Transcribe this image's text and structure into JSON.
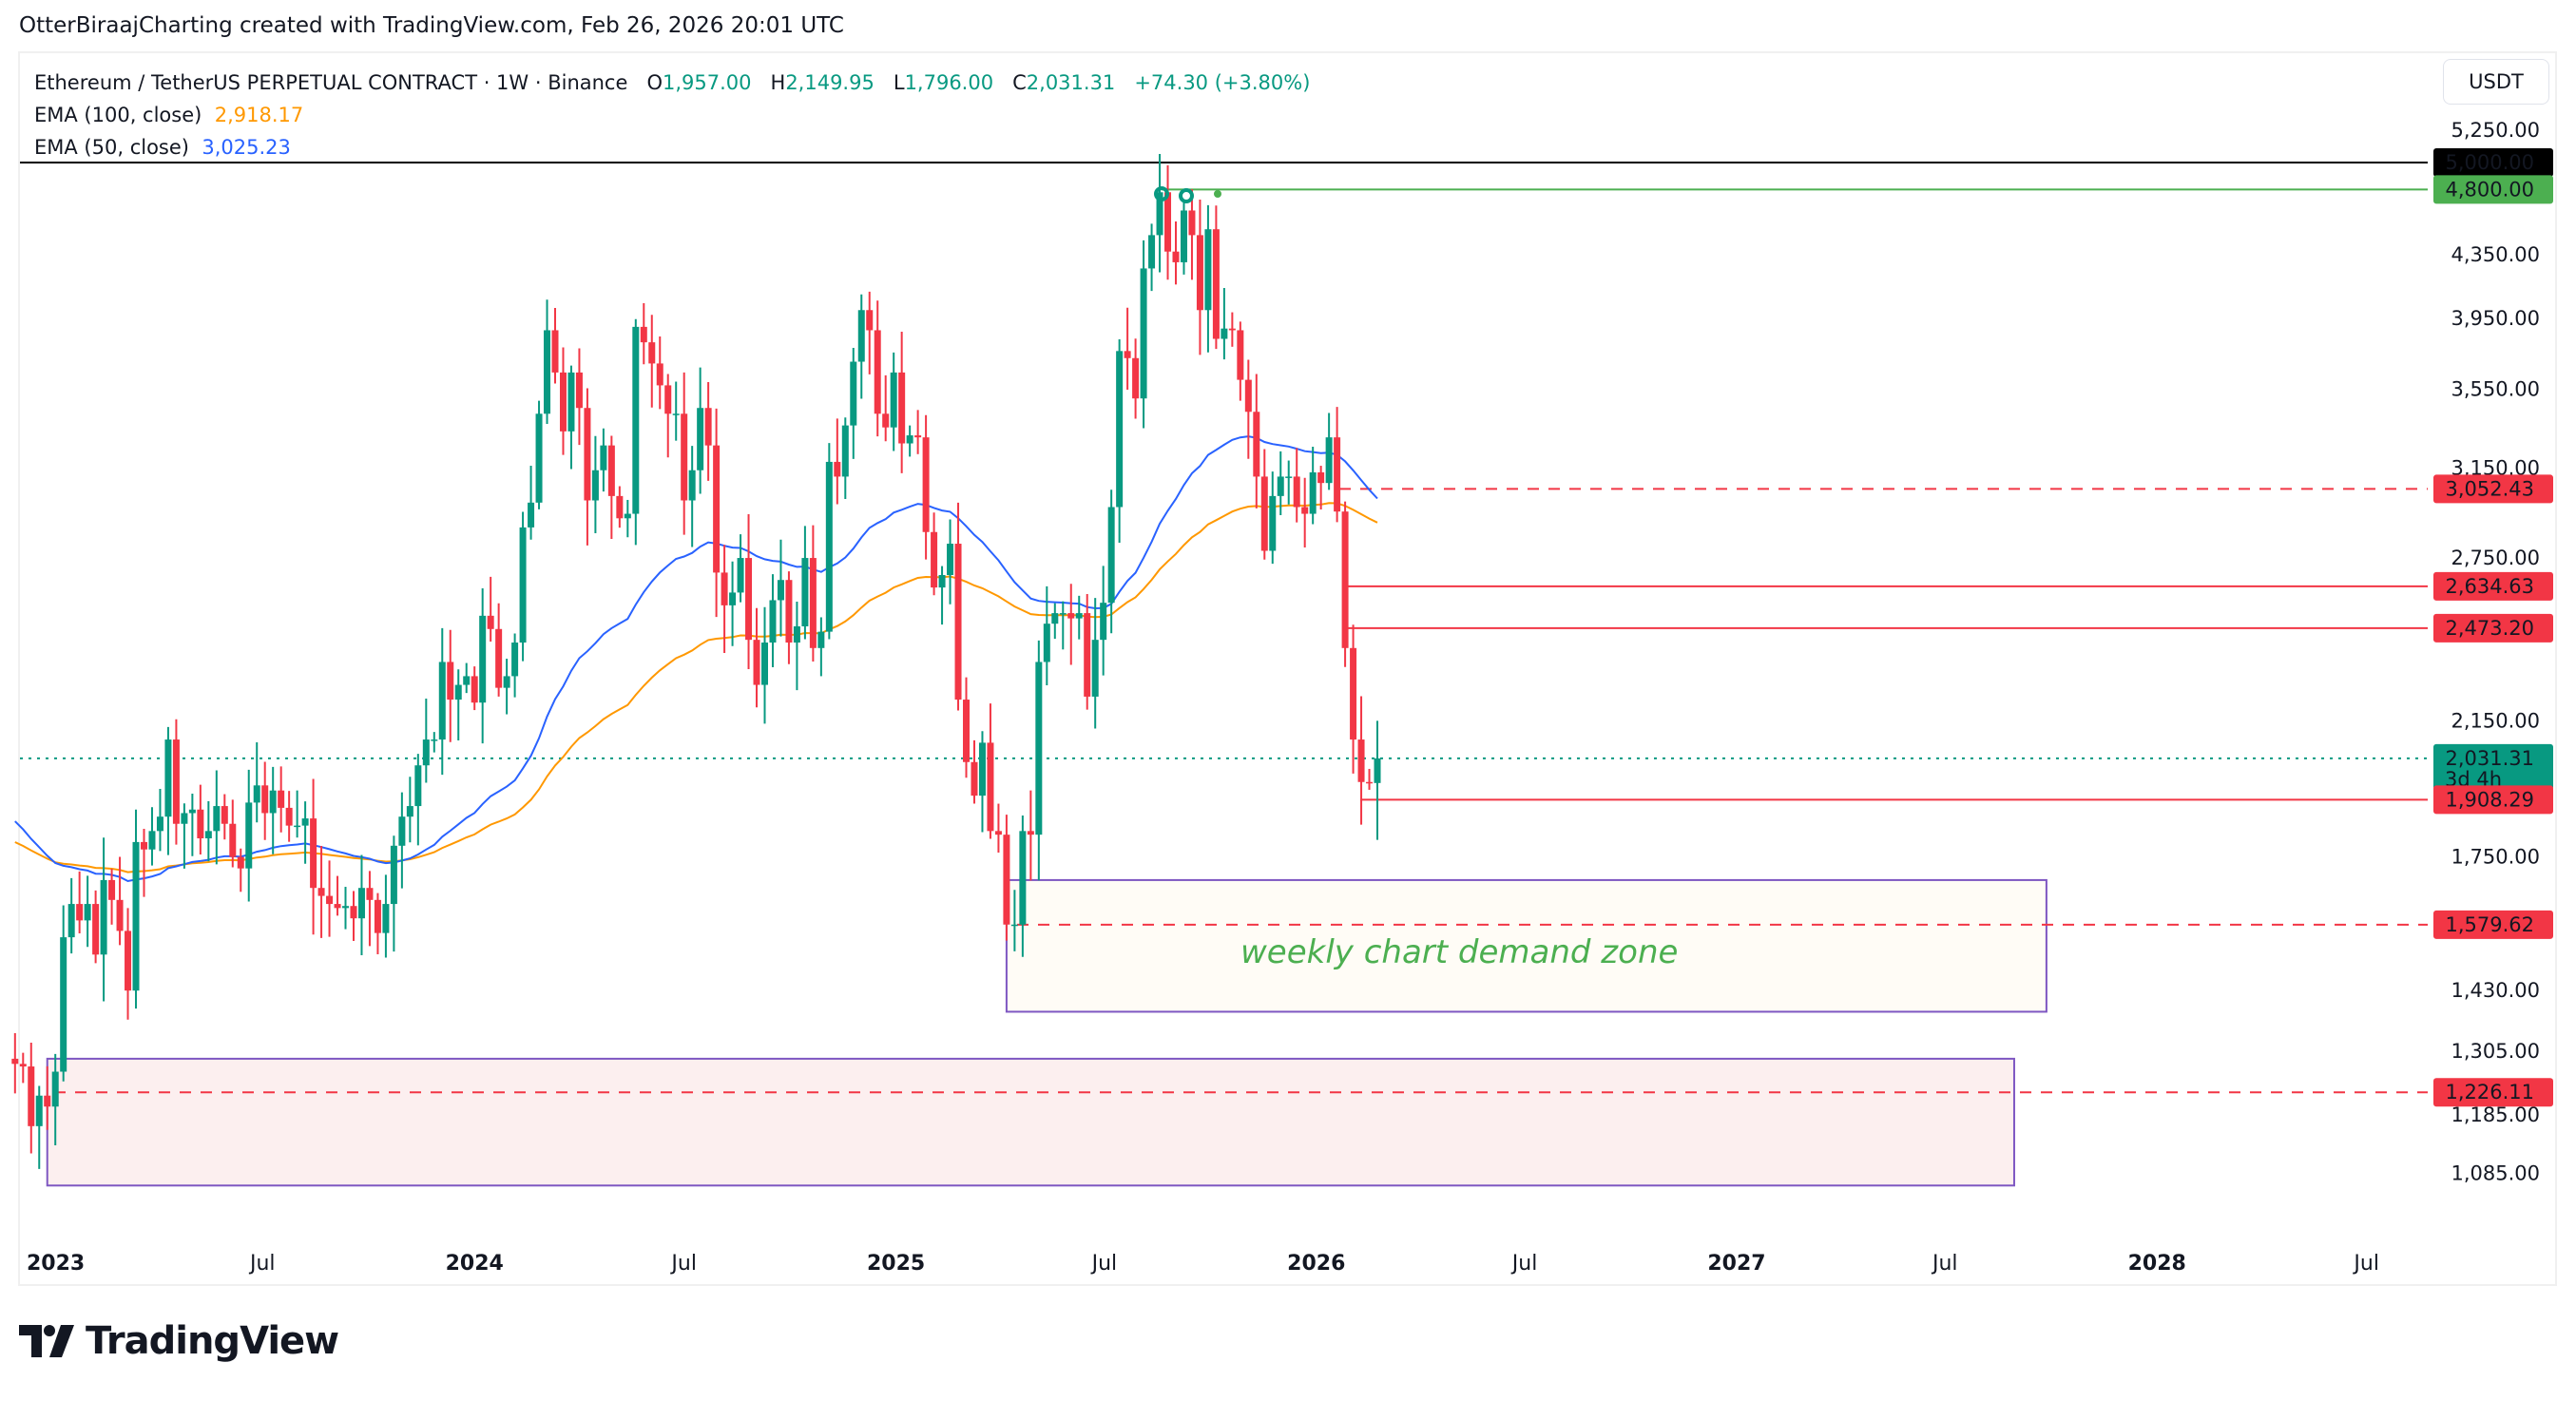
{
  "credit": "OtterBiraajCharting created with TradingView.com, Feb 26, 2026 20:01 UTC",
  "legend": {
    "symbol": "Ethereum / TetherUS PERPETUAL CONTRACT · 1W · Binance",
    "o_label": "O",
    "o": "1,957.00",
    "h_label": "H",
    "h": "2,149.95",
    "l_label": "L",
    "l": "1,796.00",
    "c_label": "C",
    "c": "2,031.31",
    "change": "+74.30 (+3.80%)",
    "ema100_label": "EMA (100, close)",
    "ema100": "2,918.17",
    "ema50_label": "EMA (50, close)",
    "ema50": "3,025.23"
  },
  "currency_button": "USDT",
  "branding": "TradingView",
  "colors": {
    "up": "#089981",
    "down": "#f23645",
    "ema50": "#2962ff",
    "ema100": "#ff9800",
    "level_green": "#4caf50",
    "zone_border": "#7e57c2"
  },
  "chart_data": {
    "type": "candlestick",
    "interval": "1W",
    "y_scale": "log",
    "ylim": [
      1000,
      5400
    ],
    "grid": false,
    "y_ticks": [
      "5,250.00",
      "4,350.00",
      "3,950.00",
      "3,550.00",
      "3,150.00",
      "2,750.00",
      "2,150.00",
      "1,750.00",
      "1,430.00",
      "1,305.00",
      "1,185.00",
      "1,085.00"
    ],
    "y_tick_values": [
      5250,
      4350,
      3950,
      3550,
      3150,
      2750,
      2150,
      1750,
      1430,
      1305,
      1185,
      1085
    ],
    "x_ticks": [
      {
        "label": "2023",
        "date": "2023-01-01",
        "bold": true
      },
      {
        "label": "Jul",
        "date": "2023-07-01",
        "bold": false
      },
      {
        "label": "2024",
        "date": "2024-01-01",
        "bold": true
      },
      {
        "label": "Jul",
        "date": "2024-07-01",
        "bold": false
      },
      {
        "label": "2025",
        "date": "2025-01-01",
        "bold": true
      },
      {
        "label": "Jul",
        "date": "2025-07-01",
        "bold": false
      },
      {
        "label": "2026",
        "date": "2026-01-01",
        "bold": true
      },
      {
        "label": "Jul",
        "date": "2026-07-01",
        "bold": false
      },
      {
        "label": "2027",
        "date": "2027-01-01",
        "bold": true
      },
      {
        "label": "Jul",
        "date": "2027-07-01",
        "bold": false
      },
      {
        "label": "2028",
        "date": "2028-01-01",
        "bold": true
      },
      {
        "label": "Jul",
        "date": "2028-07-01",
        "bold": false
      }
    ],
    "first_candle": "2022-11-28",
    "weekly_closes": [
      1280,
      1275,
      1165,
      1220,
      1200,
      1265,
      1550,
      1630,
      1590,
      1630,
      1510,
      1690,
      1640,
      1565,
      1430,
      1790,
      1770,
      1820,
      1860,
      2090,
      1840,
      1870,
      1880,
      1800,
      1820,
      1890,
      1840,
      1750,
      1720,
      1900,
      1950,
      1870,
      1935,
      1885,
      1835,
      1835,
      1855,
      1670,
      1650,
      1630,
      1620,
      1625,
      1595,
      1670,
      1640,
      1560,
      1630,
      1780,
      1860,
      1890,
      2010,
      2090,
      2090,
      2350,
      2220,
      2270,
      2300,
      2210,
      2520,
      2470,
      2260,
      2300,
      2420,
      2880,
      2990,
      3420,
      3880,
      3640,
      3330,
      3640,
      3450,
      3000,
      3140,
      3260,
      3020,
      2920,
      2940,
      3900,
      3810,
      3690,
      3570,
      3420,
      3420,
      3000,
      3140,
      3450,
      3260,
      2690,
      2560,
      2610,
      2750,
      2430,
      2270,
      2420,
      2580,
      2660,
      2420,
      2480,
      2750,
      2400,
      2460,
      3180,
      3110,
      3360,
      3700,
      4000,
      3880,
      3420,
      3350,
      3640,
      3270,
      3310,
      3300,
      2860,
      2630,
      2680,
      2810,
      2220,
      2020,
      1920,
      2080,
      1820,
      1810,
      1580,
      1580,
      1820,
      1810,
      2350,
      2490,
      2530,
      2530,
      2510,
      2530,
      2230,
      2430,
      2570,
      2970,
      3760,
      3720,
      3500,
      4260,
      4480,
      4780,
      4370,
      4300,
      4650,
      4480,
      4000,
      4520,
      3830,
      3890,
      3880,
      3600,
      3430,
      3110,
      2780,
      3020,
      3110,
      3110,
      2970,
      2940,
      3130,
      3080,
      3300,
      2950,
      2400,
      2090,
      1960,
      1957,
      2031.31
    ],
    "last_candle": {
      "open": 1957.0,
      "high": 2149.95,
      "low": 1796.0,
      "close": 2031.31
    },
    "series": [
      {
        "name": "EMA (100, close)",
        "last": 2918.17
      },
      {
        "name": "EMA (50, close)",
        "last": 3025.23
      }
    ],
    "levels": [
      {
        "price": 5000.0,
        "label": "5,000.00",
        "style": "solid",
        "color": "#000000"
      },
      {
        "price": 4800.0,
        "label": "4,800.00",
        "style": "solid",
        "color": "#4caf50"
      },
      {
        "price": 3052.43,
        "label": "3,052.43",
        "style": "dashed",
        "color": "#f23645"
      },
      {
        "price": 2634.63,
        "label": "2,634.63",
        "style": "solid",
        "color": "#f23645"
      },
      {
        "price": 2473.2,
        "label": "2,473.20",
        "style": "solid",
        "color": "#f23645"
      },
      {
        "price": 1908.29,
        "label": "1,908.29",
        "style": "solid",
        "color": "#f23645"
      },
      {
        "price": 1579.62,
        "label": "1,579.62",
        "style": "dashed",
        "color": "#f23645"
      },
      {
        "price": 1226.11,
        "label": "1,226.11",
        "style": "dashed",
        "color": "#f23645"
      }
    ],
    "current_price": {
      "label": "2,031.31",
      "countdown": "3d 4h"
    },
    "zones": [
      {
        "label": "weekly chart demand zone",
        "from": "2025-04-07",
        "to": "2027-09-27",
        "top": 1690,
        "bottom": 1385,
        "fill": "#fffcf6"
      },
      {
        "label": "",
        "from": "2022-12-26",
        "to": "2027-08-30",
        "top": 1290,
        "bottom": 1065,
        "fill": "#fcefef"
      }
    ]
  }
}
